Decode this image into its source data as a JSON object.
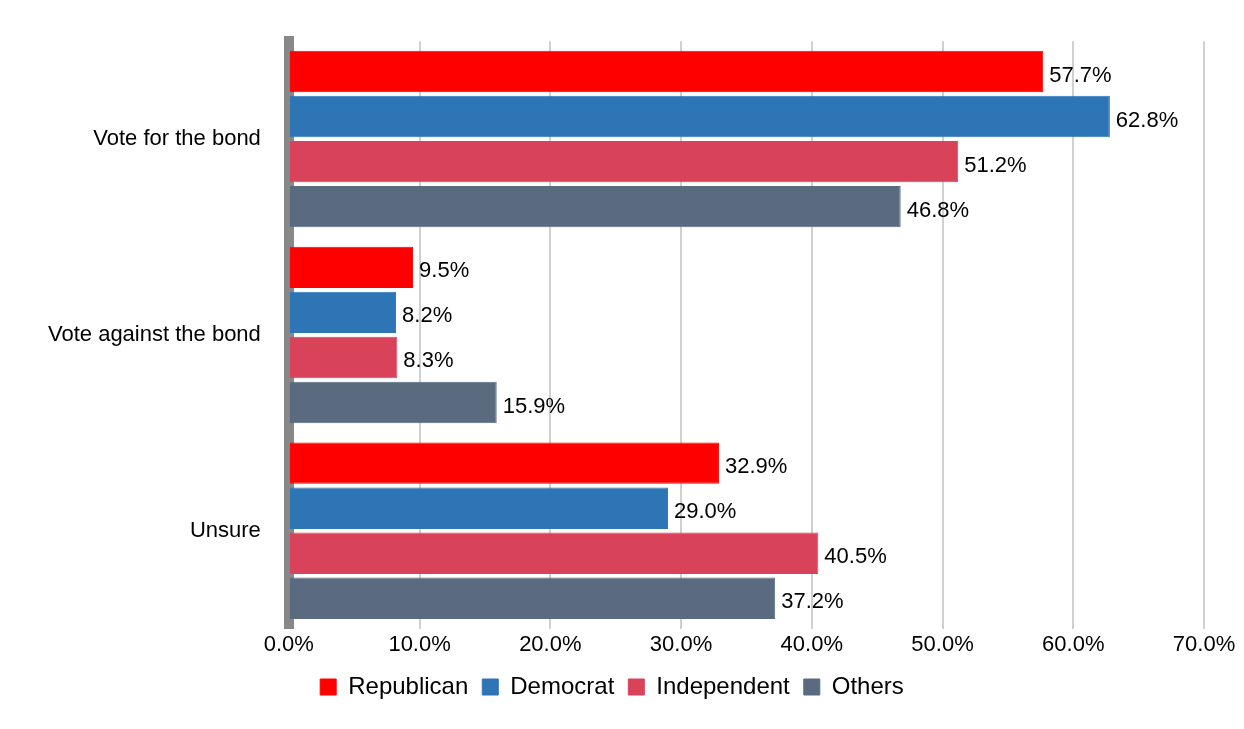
{
  "chart_data": {
    "type": "bar",
    "orientation": "horizontal",
    "categories": [
      "Vote for the bond",
      "Vote against the bond",
      "Unsure"
    ],
    "series": [
      {
        "name": "Republican",
        "color": "#ff0000",
        "values": [
          57.7,
          9.5,
          32.9
        ],
        "value_labels": [
          "57.7%",
          "9.5%",
          "32.9%"
        ]
      },
      {
        "name": "Democrat",
        "color": "#2e75b6",
        "values": [
          62.8,
          8.2,
          29.0
        ],
        "value_labels": [
          "62.8%",
          "8.2%",
          "29.0%"
        ]
      },
      {
        "name": "Independent",
        "color": "#d9435a",
        "values": [
          51.2,
          8.3,
          40.5
        ],
        "value_labels": [
          "51.2%",
          "8.3%",
          "40.5%"
        ]
      },
      {
        "name": "Others",
        "color": "#5a6b80",
        "values": [
          46.8,
          15.9,
          37.2
        ],
        "value_labels": [
          "46.8%",
          "15.9%",
          "37.2%"
        ]
      }
    ],
    "xlim": [
      0,
      70
    ],
    "xticks": [
      {
        "value": 0,
        "label": "0.0%"
      },
      {
        "value": 10,
        "label": "10.0%"
      },
      {
        "value": 20,
        "label": "20.0%"
      },
      {
        "value": 30,
        "label": "30.0%"
      },
      {
        "value": 40,
        "label": "40.0%"
      },
      {
        "value": 50,
        "label": "50.0%"
      },
      {
        "value": 60,
        "label": "60.0%"
      },
      {
        "value": 70,
        "label": "70.0%"
      }
    ],
    "grid": "x",
    "legend": "bottom"
  }
}
